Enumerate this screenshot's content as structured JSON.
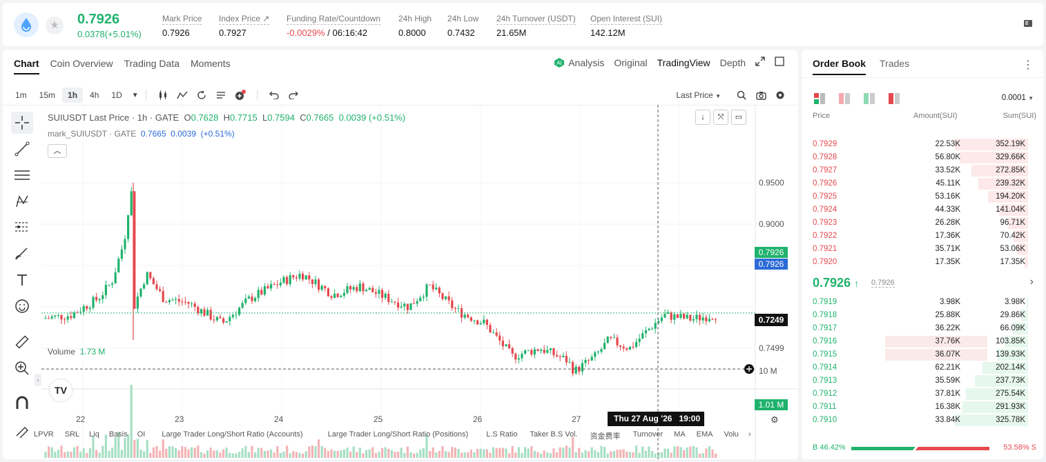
{
  "ticker": {
    "price": "0.7926",
    "change": "0.0378(+5.01%)",
    "stats": [
      {
        "label": "Mark Price",
        "value": "0.7926"
      },
      {
        "label": "Index Price ↗",
        "value": "0.7927"
      },
      {
        "label": "Funding Rate/Countdown",
        "value_neg": "-0.0029%",
        "value": " / 06:16:42"
      },
      {
        "label": "24h High",
        "value": "0.8000"
      },
      {
        "label": "24h Low",
        "value": "0.7432"
      },
      {
        "label": "24h Turnover (USDT)",
        "value": "21.65M"
      },
      {
        "label": "Open Interest (SUI)",
        "value": "142.12M"
      }
    ]
  },
  "chart_tabs": [
    "Chart",
    "Coin Overview",
    "Trading Data",
    "Moments"
  ],
  "chart_views": {
    "analysis": "Analysis",
    "original": "Original",
    "tradingview": "TradingView",
    "depth": "Depth"
  },
  "timeframes": [
    "1m",
    "15m",
    "1h",
    "4h",
    "1D"
  ],
  "price_type": "Last Price",
  "legend": {
    "symbol": "SUIUSDT Last Price · 1h · GATE",
    "o_lbl": "O",
    "o": "0.7628",
    "h_lbl": "H",
    "h": "0.7715",
    "l_lbl": "L",
    "l": "0.7594",
    "c_lbl": "C",
    "c": "0.7665",
    "chg": "0.0039 (+0.51%)",
    "mark_symbol": "mark_SUIUSDT · GATE",
    "mark_val": "0.7665",
    "mark_chg": "0.0039",
    "mark_pct": "(+0.51%)"
  },
  "price_axis": [
    "0.9500",
    "0.9000",
    "0.8500",
    "0.7499"
  ],
  "price_tags": {
    "last": "0.7926",
    "mark": "0.7926",
    "cross": "0.7249"
  },
  "volume": {
    "label": "Volume",
    "value": "1.73 M",
    "axis": "10 M",
    "tag": "1.01 M"
  },
  "time_axis": [
    "22",
    "23",
    "24",
    "25",
    "26",
    "27"
  ],
  "crosshair_time": {
    "date": "Thu 27 Aug '26",
    "time": "19:00"
  },
  "indicators": [
    "LPVR",
    "SRL",
    "Liq",
    "Basis",
    "OI",
    "Large Trader Long/Short Ratio (Accounts)",
    "Large Trader Long/Short Ratio (Positions)",
    "L.S Ratio",
    "Taker B.S Vol.",
    "资金费率",
    "Turnover",
    "MA",
    "EMA",
    "Volu"
  ],
  "orderbook": {
    "tabs": [
      "Order Book",
      "Trades"
    ],
    "precision": "0.0001",
    "headers": {
      "price": "Price",
      "amount": "Amount(SUI)",
      "sum": "Sum(SUI)"
    },
    "asks": [
      {
        "price": "0.7929",
        "amount": "22.53K",
        "sum": "352.19K",
        "depth": 1.0
      },
      {
        "price": "0.7928",
        "amount": "56.80K",
        "sum": "329.66K",
        "depth": 0.936
      },
      {
        "price": "0.7927",
        "amount": "33.52K",
        "sum": "272.85K",
        "depth": 0.775
      },
      {
        "price": "0.7926",
        "amount": "45.11K",
        "sum": "239.32K",
        "depth": 0.68
      },
      {
        "price": "0.7925",
        "amount": "53.16K",
        "sum": "194.20K",
        "depth": 0.551
      },
      {
        "price": "0.7924",
        "amount": "44.33K",
        "sum": "141.04K",
        "depth": 0.4
      },
      {
        "price": "0.7923",
        "amount": "26.28K",
        "sum": "96.71K",
        "depth": 0.275
      },
      {
        "price": "0.7922",
        "amount": "17.36K",
        "sum": "70.42K",
        "depth": 0.2
      },
      {
        "price": "0.7921",
        "amount": "35.71K",
        "sum": "53.06K",
        "depth": 0.151
      },
      {
        "price": "0.7920",
        "amount": "17.35K",
        "sum": "17.35K",
        "depth": 0.049
      }
    ],
    "mid_price": "0.7926",
    "mid_mark": "0.7926",
    "bids": [
      {
        "price": "0.7919",
        "amount": "3.98K",
        "sum": "3.98K",
        "depth": 0.012,
        "hl": false
      },
      {
        "price": "0.7918",
        "amount": "25.88K",
        "sum": "29.86K",
        "depth": 0.092,
        "hl": false
      },
      {
        "price": "0.7917",
        "amount": "36.22K",
        "sum": "66.09K",
        "depth": 0.203,
        "hl": false
      },
      {
        "price": "0.7916",
        "amount": "37.76K",
        "sum": "103.85K",
        "depth": 0.319,
        "hl": true
      },
      {
        "price": "0.7915",
        "amount": "36.07K",
        "sum": "139.93K",
        "depth": 0.429,
        "hl": true
      },
      {
        "price": "0.7914",
        "amount": "62.21K",
        "sum": "202.14K",
        "depth": 0.62,
        "hl": false
      },
      {
        "price": "0.7913",
        "amount": "35.59K",
        "sum": "237.73K",
        "depth": 0.73,
        "hl": false
      },
      {
        "price": "0.7912",
        "amount": "37.81K",
        "sum": "275.54K",
        "depth": 0.846,
        "hl": false
      },
      {
        "price": "0.7911",
        "amount": "16.38K",
        "sum": "291.93K",
        "depth": 0.896,
        "hl": false
      },
      {
        "price": "0.7910",
        "amount": "33.84K",
        "sum": "325.78K",
        "depth": 1.0,
        "hl": false
      }
    ],
    "buy_pct": "B 46.42%",
    "sell_pct": "53.58% S",
    "buy_ratio": 0.4642
  },
  "colors": {
    "up": "#20b26c",
    "down": "#e5484d",
    "mark": "#2b6bd6"
  }
}
